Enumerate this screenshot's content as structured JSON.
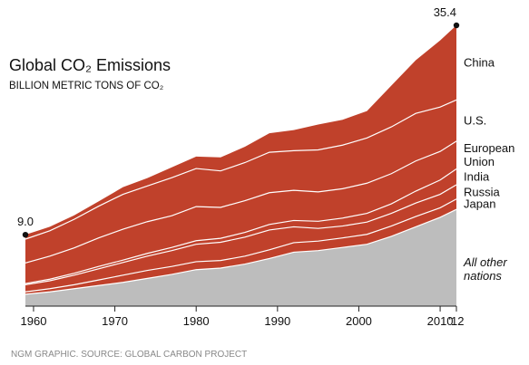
{
  "chart_data": {
    "type": "stacked-area",
    "title": "Global CO₂ Emissions",
    "subtitle": "BILLION METRIC TONS OF CO₂",
    "source": "NGM GRAPHIC. SOURCE: GLOBAL CARBON PROJECT",
    "x": [
      1959,
      1962,
      1965,
      1968,
      1971,
      1974,
      1977,
      1980,
      1983,
      1986,
      1989,
      1992,
      1995,
      1998,
      2001,
      2004,
      2007,
      2010,
      2012
    ],
    "xlim": [
      1959,
      2012
    ],
    "xticks": [
      1960,
      1970,
      1980,
      1990,
      2000,
      2010,
      {
        "value": 2012,
        "label": "'12"
      }
    ],
    "series": [
      {
        "name": "All other nations",
        "color": "#bdbdbd",
        "values": [
          1.5,
          1.8,
          2.2,
          2.6,
          3.0,
          3.5,
          4.0,
          4.6,
          4.8,
          5.3,
          6.0,
          6.8,
          7.0,
          7.4,
          7.8,
          8.8,
          10.0,
          11.2,
          12.2
        ]
      },
      {
        "name": "Japan",
        "color": "#c0412b",
        "values": [
          0.3,
          0.4,
          0.5,
          0.7,
          0.9,
          1.0,
          1.0,
          1.0,
          0.95,
          1.0,
          1.1,
          1.2,
          1.2,
          1.2,
          1.25,
          1.3,
          1.3,
          1.2,
          1.3
        ]
      },
      {
        "name": "Russia",
        "color": "#c0412b",
        "values": [
          0.9,
          1.0,
          1.2,
          1.4,
          1.6,
          1.8,
          2.0,
          2.2,
          2.3,
          2.4,
          2.5,
          2.0,
          1.6,
          1.5,
          1.55,
          1.6,
          1.7,
          1.7,
          1.8
        ]
      },
      {
        "name": "India",
        "color": "#c0412b",
        "values": [
          0.15,
          0.2,
          0.25,
          0.3,
          0.3,
          0.35,
          0.4,
          0.45,
          0.5,
          0.6,
          0.7,
          0.8,
          0.9,
          1.0,
          1.1,
          1.2,
          1.5,
          1.8,
          2.0
        ]
      },
      {
        "name": "European Union",
        "color": "#c0412b",
        "values": [
          2.6,
          2.9,
          3.2,
          3.6,
          3.9,
          4.0,
          4.0,
          4.3,
          3.9,
          4.0,
          4.0,
          3.8,
          3.7,
          3.7,
          3.8,
          3.8,
          3.8,
          3.6,
          3.5
        ]
      },
      {
        "name": "U.S.",
        "color": "#c0412b",
        "values": [
          3.0,
          3.2,
          3.6,
          4.0,
          4.4,
          4.5,
          4.8,
          4.8,
          4.6,
          4.8,
          5.1,
          5.0,
          5.3,
          5.5,
          5.7,
          5.9,
          6.0,
          5.6,
          5.2
        ]
      },
      {
        "name": "China",
        "color": "#c0412b",
        "values": [
          0.55,
          0.5,
          0.5,
          0.6,
          0.9,
          1.0,
          1.3,
          1.5,
          1.7,
          2.0,
          2.4,
          2.6,
          3.2,
          3.2,
          3.4,
          5.2,
          6.7,
          8.4,
          9.4
        ]
      }
    ],
    "total_labels": [
      {
        "x": 1959,
        "value": 9,
        "label": "9.0"
      },
      {
        "x": 2012,
        "value": 35.4,
        "label": "35.4"
      }
    ]
  }
}
